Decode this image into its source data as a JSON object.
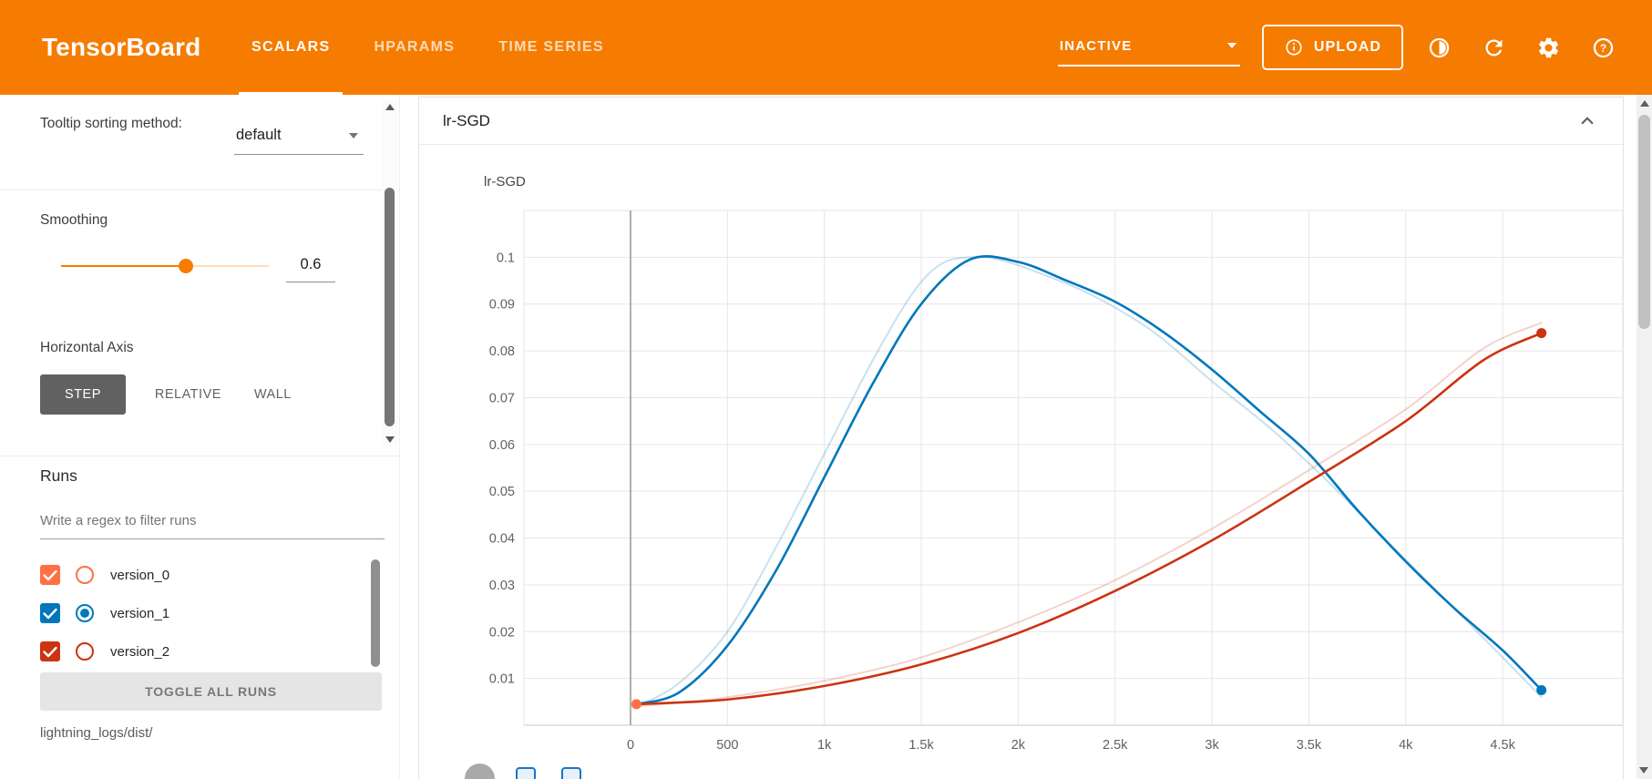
{
  "colors": {
    "header_bg": "#f57c00",
    "accent": "#f57c00",
    "run_version_0": "#ff7043",
    "run_version_1": "#0077bb",
    "run_version_2": "#cc3311"
  },
  "header": {
    "title": "TensorBoard",
    "tabs": [
      {
        "label": "SCALARS",
        "active": true
      },
      {
        "label": "HPARAMS",
        "active": false
      },
      {
        "label": "TIME SERIES",
        "active": false
      }
    ],
    "status": {
      "value": "INACTIVE"
    },
    "upload": {
      "label": "UPLOAD"
    }
  },
  "sidebar": {
    "tooltip_sorting": {
      "label": "Tooltip sorting method:",
      "value": "default"
    },
    "smoothing": {
      "label": "Smoothing",
      "value": "0.6"
    },
    "horizontal_axis": {
      "label": "Horizontal Axis",
      "options": [
        "STEP",
        "RELATIVE",
        "WALL"
      ],
      "selected": "STEP"
    },
    "runs": {
      "label": "Runs",
      "filter_placeholder": "Write a regex to filter runs",
      "toggle_all_label": "TOGGLE ALL RUNS",
      "log_dir": "lightning_logs/dist/",
      "items": [
        {
          "name": "version_0",
          "color": "#ff7043",
          "checked": true,
          "radio_selected": false
        },
        {
          "name": "version_1",
          "color": "#0077bb",
          "checked": true,
          "radio_selected": true
        },
        {
          "name": "version_2",
          "color": "#cc3311",
          "checked": true,
          "radio_selected": false
        }
      ]
    }
  },
  "main": {
    "group_title": "lr-SGD"
  },
  "chart_data": {
    "type": "line",
    "title": "lr-SGD",
    "xlabel": "",
    "ylabel": "",
    "xlim": [
      -550,
      5120
    ],
    "ylim": [
      0,
      0.11
    ],
    "grid": true,
    "legend": "none",
    "zero_line_x": 0,
    "x_ticks": [
      {
        "v": 0,
        "label": "0"
      },
      {
        "v": 500,
        "label": "500"
      },
      {
        "v": 1000,
        "label": "1k"
      },
      {
        "v": 1500,
        "label": "1.5k"
      },
      {
        "v": 2000,
        "label": "2k"
      },
      {
        "v": 2500,
        "label": "2.5k"
      },
      {
        "v": 3000,
        "label": "3k"
      },
      {
        "v": 3500,
        "label": "3.5k"
      },
      {
        "v": 4000,
        "label": "4k"
      },
      {
        "v": 4500,
        "label": "4.5k"
      }
    ],
    "y_ticks": [
      {
        "v": 0.01,
        "label": "0.01"
      },
      {
        "v": 0.02,
        "label": "0.02"
      },
      {
        "v": 0.03,
        "label": "0.03"
      },
      {
        "v": 0.04,
        "label": "0.04"
      },
      {
        "v": 0.05,
        "label": "0.05"
      },
      {
        "v": 0.06,
        "label": "0.06"
      },
      {
        "v": 0.07,
        "label": "0.07"
      },
      {
        "v": 0.08,
        "label": "0.08"
      },
      {
        "v": 0.09,
        "label": "0.09"
      },
      {
        "v": 0.1,
        "label": "0.1"
      }
    ],
    "series": [
      {
        "name": "version_1",
        "color": "#0077bb",
        "opacity": 0.22,
        "width": 2,
        "points": [
          [
            30,
            0.004
          ],
          [
            250,
            0.009
          ],
          [
            500,
            0.02
          ],
          [
            750,
            0.038
          ],
          [
            1000,
            0.058
          ],
          [
            1250,
            0.078
          ],
          [
            1450,
            0.092
          ],
          [
            1600,
            0.0985
          ],
          [
            1750,
            0.1
          ],
          [
            1900,
            0.0995
          ],
          [
            2150,
            0.096
          ],
          [
            2400,
            0.0915
          ],
          [
            2700,
            0.084
          ],
          [
            3000,
            0.0735
          ],
          [
            3300,
            0.0635
          ],
          [
            3600,
            0.052
          ],
          [
            3900,
            0.0395
          ],
          [
            4200,
            0.027
          ],
          [
            4500,
            0.0145
          ],
          [
            4700,
            0.006
          ]
        ]
      },
      {
        "name": "version_1 (smoothed)",
        "color": "#0077bb",
        "opacity": 1,
        "width": 2.6,
        "points": [
          [
            30,
            0.0045
          ],
          [
            250,
            0.007
          ],
          [
            500,
            0.017
          ],
          [
            750,
            0.033
          ],
          [
            1000,
            0.053
          ],
          [
            1250,
            0.073
          ],
          [
            1500,
            0.09
          ],
          [
            1750,
            0.0995
          ],
          [
            2000,
            0.099
          ],
          [
            2250,
            0.095
          ],
          [
            2500,
            0.0905
          ],
          [
            2750,
            0.084
          ],
          [
            3000,
            0.076
          ],
          [
            3250,
            0.067
          ],
          [
            3500,
            0.058
          ],
          [
            3750,
            0.046
          ],
          [
            4000,
            0.035
          ],
          [
            4250,
            0.025
          ],
          [
            4500,
            0.016
          ],
          [
            4700,
            0.0075
          ]
        ]
      },
      {
        "name": "version_2",
        "color": "#cc3311",
        "opacity": 0.22,
        "width": 2,
        "points": [
          [
            30,
            0.004
          ],
          [
            500,
            0.006
          ],
          [
            1000,
            0.0095
          ],
          [
            1500,
            0.0145
          ],
          [
            2000,
            0.022
          ],
          [
            2500,
            0.031
          ],
          [
            3000,
            0.042
          ],
          [
            3500,
            0.0545
          ],
          [
            4000,
            0.0675
          ],
          [
            4400,
            0.0805
          ],
          [
            4700,
            0.086
          ]
        ]
      },
      {
        "name": "version_2 (smoothed)",
        "color": "#cc3311",
        "opacity": 1,
        "width": 2.6,
        "points": [
          [
            30,
            0.0045
          ],
          [
            500,
            0.0055
          ],
          [
            1000,
            0.0084
          ],
          [
            1500,
            0.013
          ],
          [
            2000,
            0.0197
          ],
          [
            2500,
            0.0287
          ],
          [
            3000,
            0.0395
          ],
          [
            3500,
            0.052
          ],
          [
            4000,
            0.065
          ],
          [
            4400,
            0.078
          ],
          [
            4700,
            0.0838
          ]
        ]
      }
    ],
    "markers": [
      {
        "name": "version_0 last point",
        "x": 30,
        "y": 0.0045,
        "color": "#ff7043"
      },
      {
        "name": "version_2 last point",
        "x": 4700,
        "y": 0.0838,
        "color": "#cc3311"
      },
      {
        "name": "version_1 last point",
        "x": 4700,
        "y": 0.0075,
        "color": "#0077bb"
      }
    ]
  }
}
